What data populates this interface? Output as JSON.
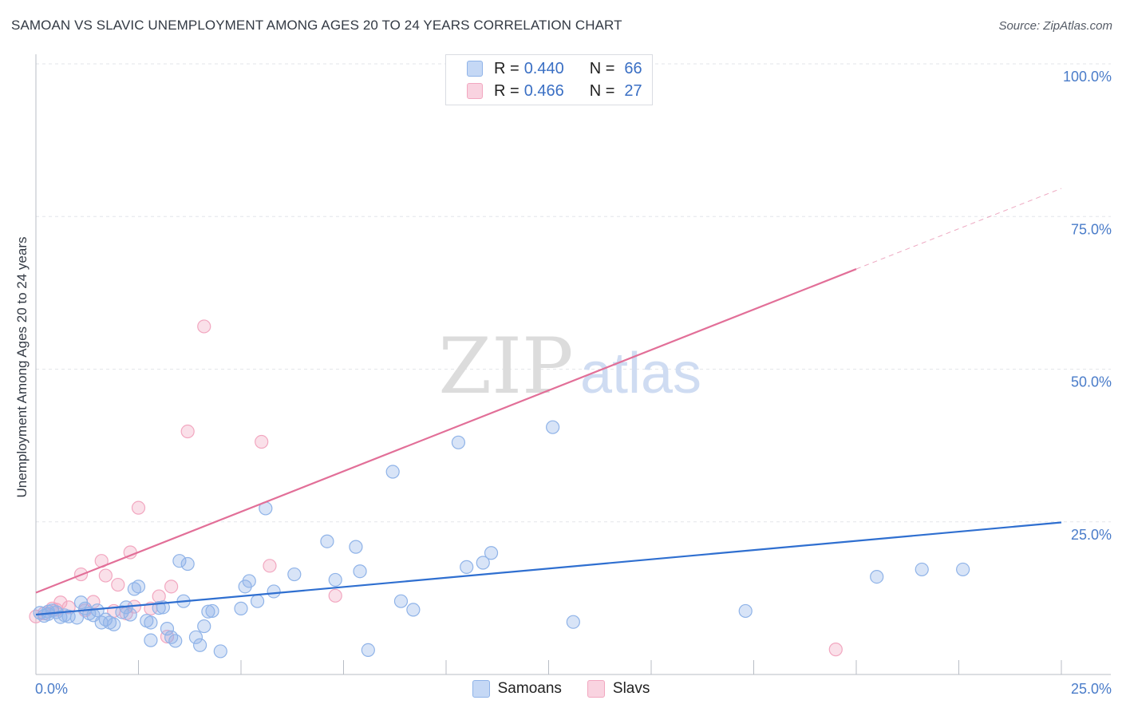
{
  "title": "SAMOAN VS SLAVIC UNEMPLOYMENT AMONG AGES 20 TO 24 YEARS CORRELATION CHART",
  "source": "Source: ZipAtlas.com",
  "watermark": {
    "zip": "ZIP",
    "atlas": "atlas"
  },
  "legend_top": [
    {
      "r_label": "R =",
      "r_value": "0.440",
      "n_label": "N =",
      "n_value": "66",
      "color": "#8fb3e8"
    },
    {
      "r_label": "R =",
      "r_value": "0.466",
      "n_label": "N =",
      "n_value": "27",
      "color": "#f2a7c0"
    }
  ],
  "legend_bottom": [
    {
      "label": "Samoans",
      "color": "#8fb3e8"
    },
    {
      "label": "Slavs",
      "color": "#f2a7c0"
    }
  ],
  "chart_data": {
    "type": "scatter",
    "title": "SAMOAN VS SLAVIC UNEMPLOYMENT AMONG AGES 20 TO 24 YEARS CORRELATION CHART",
    "xlabel": "",
    "ylabel": "Unemployment Among Ages 20 to 24 years",
    "xlim": [
      0,
      25
    ],
    "ylim": [
      0,
      100
    ],
    "x_tick_labels": [
      "0.0%",
      "25.0%"
    ],
    "y_tick_labels": [
      "25.0%",
      "50.0%",
      "75.0%",
      "100.0%"
    ],
    "y_ticks": [
      25,
      50,
      75,
      100
    ],
    "grid": true,
    "legend_position": "top-center",
    "series": [
      {
        "name": "Samoans",
        "color": "#8fb3e8",
        "line_color": "#2f6fd0",
        "trend": {
          "x": [
            0,
            25
          ],
          "y": [
            9.8,
            24.9
          ]
        },
        "points": [
          [
            0.1,
            10.1
          ],
          [
            0.2,
            9.6
          ],
          [
            0.3,
            9.9
          ],
          [
            0.4,
            10.5
          ],
          [
            0.5,
            10.2
          ],
          [
            0.6,
            9.4
          ],
          [
            0.7,
            9.7
          ],
          [
            0.8,
            9.5
          ],
          [
            1.0,
            9.3
          ],
          [
            1.1,
            11.8
          ],
          [
            1.2,
            10.8
          ],
          [
            1.4,
            9.7
          ],
          [
            1.5,
            10.5
          ],
          [
            1.6,
            8.5
          ],
          [
            1.7,
            9.0
          ],
          [
            1.8,
            8.5
          ],
          [
            1.9,
            8.2
          ],
          [
            2.1,
            10.2
          ],
          [
            2.2,
            11.0
          ],
          [
            2.3,
            9.8
          ],
          [
            2.4,
            14.0
          ],
          [
            2.5,
            14.4
          ],
          [
            2.7,
            8.8
          ],
          [
            2.8,
            8.5
          ],
          [
            2.8,
            5.6
          ],
          [
            3.0,
            10.9
          ],
          [
            3.1,
            11.0
          ],
          [
            3.2,
            7.5
          ],
          [
            3.3,
            6.1
          ],
          [
            3.4,
            5.5
          ],
          [
            3.5,
            18.6
          ],
          [
            3.6,
            12.0
          ],
          [
            3.7,
            18.1
          ],
          [
            3.9,
            6.1
          ],
          [
            4.0,
            4.8
          ],
          [
            4.1,
            7.9
          ],
          [
            4.2,
            10.3
          ],
          [
            4.3,
            10.4
          ],
          [
            4.5,
            3.8
          ],
          [
            5.0,
            10.8
          ],
          [
            5.1,
            14.4
          ],
          [
            5.2,
            15.3
          ],
          [
            5.4,
            12.0
          ],
          [
            5.6,
            27.2
          ],
          [
            5.8,
            13.6
          ],
          [
            6.3,
            16.4
          ],
          [
            7.1,
            21.8
          ],
          [
            7.3,
            15.5
          ],
          [
            7.8,
            20.9
          ],
          [
            7.9,
            16.9
          ],
          [
            8.1,
            4.0
          ],
          [
            8.7,
            33.2
          ],
          [
            8.9,
            12.0
          ],
          [
            9.2,
            10.6
          ],
          [
            10.3,
            38.0
          ],
          [
            10.5,
            17.6
          ],
          [
            10.9,
            18.3
          ],
          [
            11.1,
            19.9
          ],
          [
            12.6,
            40.5
          ],
          [
            13.1,
            8.6
          ],
          [
            17.3,
            10.4
          ],
          [
            20.5,
            16.0
          ],
          [
            21.6,
            17.2
          ],
          [
            22.6,
            17.2
          ],
          [
            0.3,
            10.3
          ],
          [
            1.3,
            10.0
          ]
        ]
      },
      {
        "name": "Slavs",
        "color": "#f2a7c0",
        "line_color": "#e26f98",
        "trend": {
          "x": [
            0,
            20
          ],
          "y": [
            13.4,
            66.4
          ]
        },
        "trend_extension": {
          "x": [
            20,
            25
          ],
          "y": [
            66.4,
            79.6
          ]
        },
        "points": [
          [
            0.0,
            9.5
          ],
          [
            0.2,
            10.0
          ],
          [
            0.4,
            10.8
          ],
          [
            0.6,
            11.8
          ],
          [
            0.8,
            11.0
          ],
          [
            1.1,
            16.4
          ],
          [
            1.2,
            10.5
          ],
          [
            1.4,
            11.9
          ],
          [
            1.6,
            18.6
          ],
          [
            1.7,
            16.2
          ],
          [
            1.9,
            10.4
          ],
          [
            2.0,
            14.7
          ],
          [
            2.2,
            10.0
          ],
          [
            2.3,
            20.0
          ],
          [
            2.4,
            11.1
          ],
          [
            2.5,
            27.3
          ],
          [
            2.8,
            10.8
          ],
          [
            3.0,
            12.8
          ],
          [
            3.2,
            6.2
          ],
          [
            3.3,
            14.4
          ],
          [
            3.7,
            39.8
          ],
          [
            4.1,
            57.0
          ],
          [
            5.5,
            38.1
          ],
          [
            5.7,
            17.8
          ],
          [
            7.3,
            12.9
          ],
          [
            19.5,
            4.1
          ],
          [
            0.5,
            10.6
          ]
        ]
      }
    ]
  }
}
